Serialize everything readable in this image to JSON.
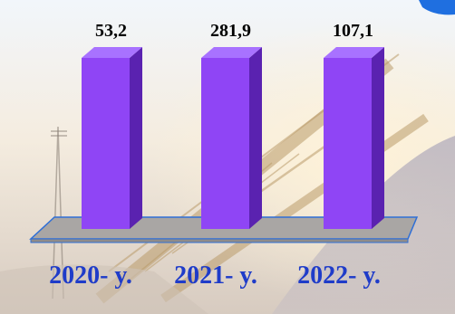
{
  "colors": {
    "bar_front": "#8f45f5",
    "bar_side": "#5a22b0",
    "bar_top": "#a872ff",
    "floor": "#a9a6a4",
    "floor_edge": "#2f6fd6",
    "value_label": "#000000",
    "category_label": "#1f3cc9"
  },
  "chart_data": {
    "type": "bar",
    "style": "3d-column",
    "categories": [
      "2020- y.",
      "2021- y.",
      "2022- y."
    ],
    "values": [
      53.2,
      281.9,
      107.1
    ],
    "value_labels": [
      "53,2",
      "281,9",
      "107,1"
    ],
    "note": "All three columns are drawn with the same height despite different values",
    "grid": false,
    "legend": "none"
  }
}
